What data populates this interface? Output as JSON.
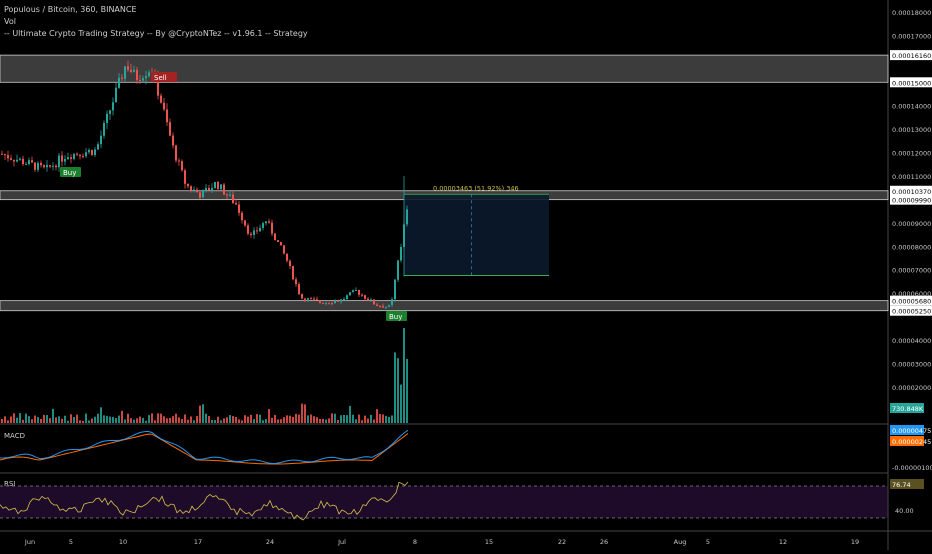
{
  "header": {
    "symbol_line": "Populous / Bitcoin, 360, BINANCE",
    "vol_label": "Vol",
    "strategy_label": "-- Ultimate Crypto Trading Strategy -- By @CryptoNTez -- v1.96.1 -- Strategy"
  },
  "panels": {
    "macd_label": "MACD",
    "rsi_label": "RSI"
  },
  "colors": {
    "up": "#26a69a",
    "down": "#ef5350",
    "zone": "#6e6e6e",
    "macd_line": "#2196f3",
    "signal_line": "#ff6d00",
    "rsi_line": "#d4c04a",
    "rsi_band": "#1e0b2a",
    "measure_fill": "#0b1a2e",
    "buy_badge": "#1b7f2d",
    "sell_badge": "#a52222",
    "axis_badge_vol": "#26a69a",
    "axis_badge_macd": "#2196f3",
    "axis_badge_signal": "#ff6d00",
    "axis_badge_rsi": "#5a5020"
  },
  "chart_data": {
    "type": "candlestick",
    "price_axis_ticks": [
      "0.00018000",
      "0.00017000",
      "0.00016160",
      "0.00015000",
      "0.00014000",
      "0.00013000",
      "0.00012000",
      "0.00011000",
      "0.00010370",
      "0.00009990",
      "0.00009000",
      "0.00008000",
      "0.00007000",
      "0.00006000",
      "0.00005680",
      "0.00005250",
      "0.00004000",
      "0.00003000",
      "0.00002000"
    ],
    "ylim": [
      1e-05,
      0.000185
    ],
    "x_tick_labels": [
      "Jun",
      "5",
      "10",
      "17",
      "24",
      "Jul",
      "8",
      "15",
      "22",
      "26",
      "Aug",
      "5",
      "12",
      "19"
    ],
    "zones": [
      {
        "low": 0.00015,
        "high": 0.0001616
      },
      {
        "low": 9.99e-05,
        "high": 0.0001037
      },
      {
        "low": 5.25e-05,
        "high": 5.68e-05
      }
    ],
    "measure_label": "0.00003463 (51.92%) 346",
    "signals": [
      {
        "label": "Sell",
        "date": "Jun 12",
        "price": 0.0001565
      },
      {
        "label": "Buy",
        "date": "Jun 6",
        "price": 0.0001105
      },
      {
        "label": "Buy",
        "date": "Jul 5",
        "price": 5.05e-05
      }
    ],
    "volume_last": "730.848K",
    "macd_values": {
      "macd": "0.00000475",
      "signal": "0.00000245",
      "axis_tick": "-0.00000100"
    },
    "rsi_values": {
      "current": "76.74",
      "axis_tick": "40.00",
      "upper": 70,
      "lower": 30
    }
  }
}
